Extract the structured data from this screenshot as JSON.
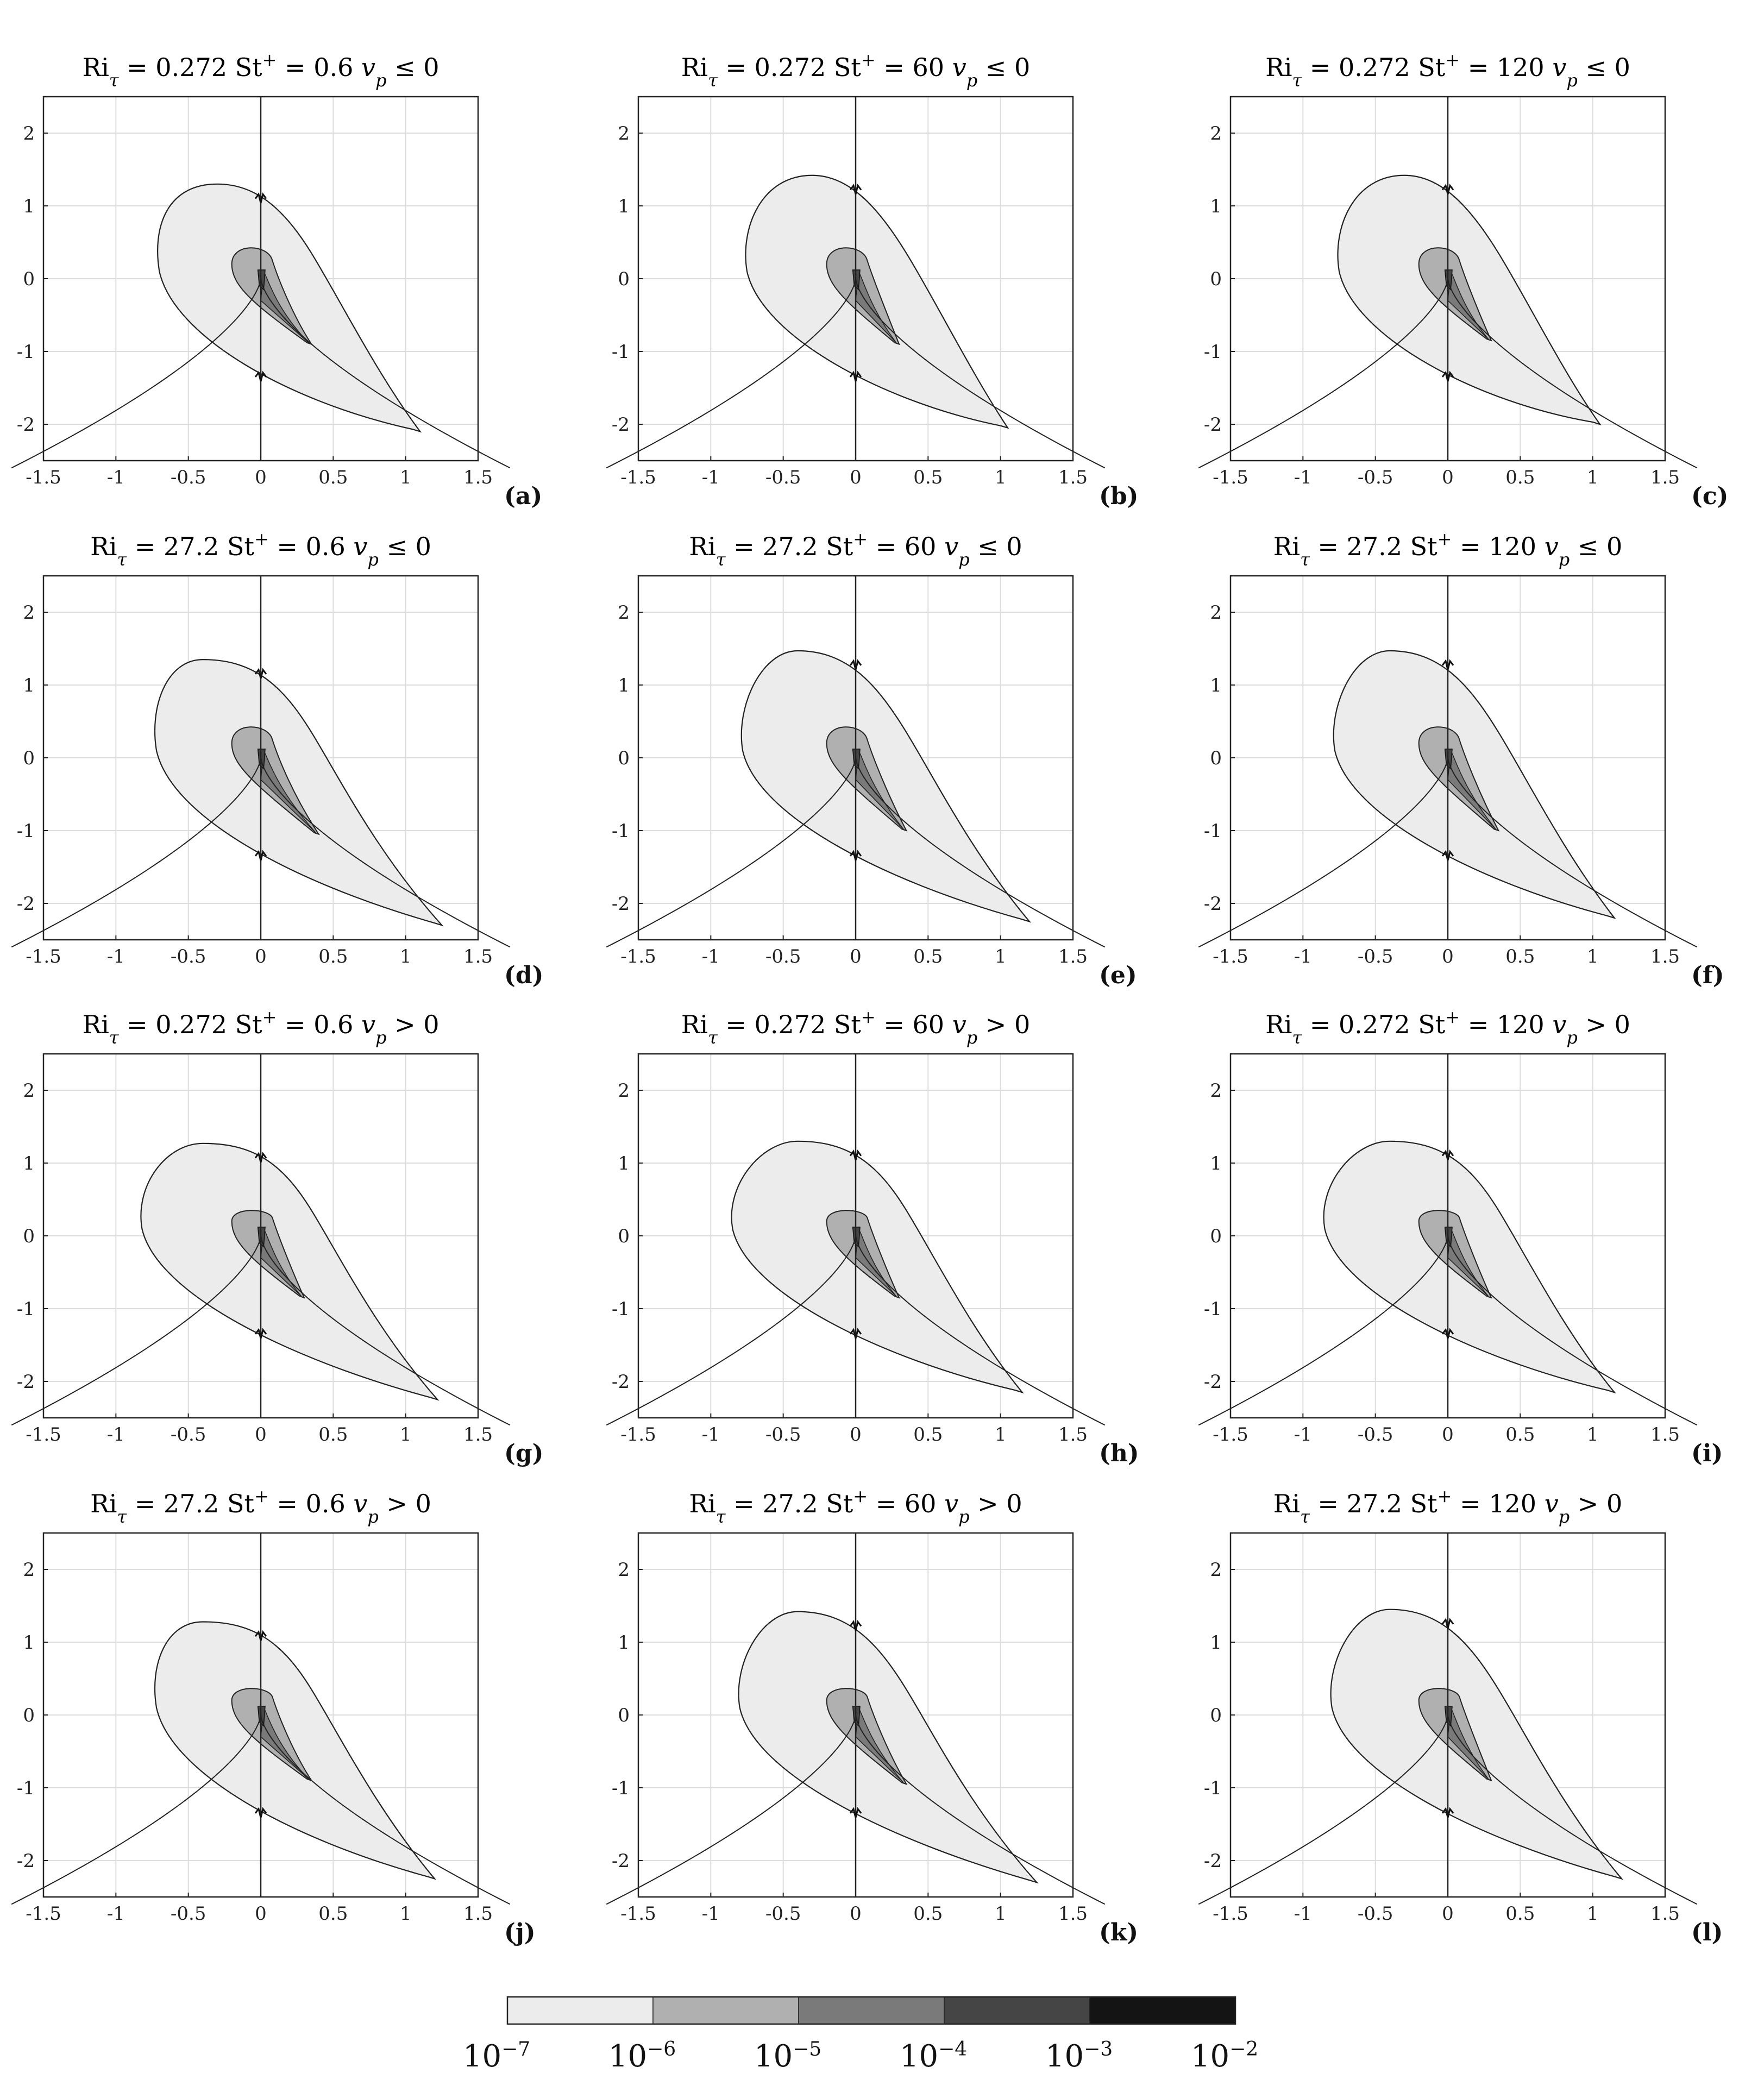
{
  "colorbar": {
    "levels": [
      "10",
      "10",
      "10",
      "10",
      "10",
      "10"
    ],
    "exponents": [
      "−7",
      "−6",
      "−5",
      "−4",
      "−3",
      "−2"
    ],
    "colors": [
      "#ececec",
      "#b0b0b0",
      "#7a7a7a",
      "#454545",
      "#141414"
    ]
  },
  "chart_data": [
    {
      "id": "a",
      "type": "area",
      "ri": "0.272",
      "st": "0.6",
      "vp": "≤ 0",
      "panel_label": "a",
      "xlim": [
        -1.5,
        1.5
      ],
      "ylim": [
        -2.5,
        2.5
      ],
      "xticks": [
        "-1.5",
        "-1",
        "-0.5",
        "0",
        "0.5",
        "1",
        "1.5"
      ],
      "yticks": [
        "2",
        "1",
        "0",
        "-1",
        "-2"
      ],
      "outer": {
        "top": 1.3,
        "left_x": -0.7,
        "tip": [
          1.1,
          -2.1
        ],
        "peak_x": -0.3
      },
      "inner": {
        "top": 0.48,
        "tip": [
          0.35,
          -0.9
        ]
      }
    },
    {
      "id": "b",
      "type": "area",
      "ri": "0.272",
      "st": "60",
      "vp": "≤ 0",
      "panel_label": "b",
      "xlim": [
        -1.5,
        1.5
      ],
      "ylim": [
        -2.5,
        2.5
      ],
      "xticks": [
        "-1.5",
        "-1",
        "-0.5",
        "0",
        "0.5",
        "1",
        "1.5"
      ],
      "yticks": [
        "2",
        "1",
        "0",
        "-1",
        "-2"
      ],
      "outer": {
        "top": 1.42,
        "left_x": -0.75,
        "tip": [
          1.05,
          -2.05
        ],
        "peak_x": -0.3
      },
      "inner": {
        "top": 0.48,
        "tip": [
          0.3,
          -0.9
        ]
      }
    },
    {
      "id": "c",
      "type": "area",
      "ri": "0.272",
      "st": "120",
      "vp": "≤ 0",
      "panel_label": "c",
      "xlim": [
        -1.5,
        1.5
      ],
      "ylim": [
        -2.5,
        2.5
      ],
      "xticks": [
        "-1.5",
        "-1",
        "-0.5",
        "0",
        "0.5",
        "1",
        "1.5"
      ],
      "yticks": [
        "2",
        "1",
        "0",
        "-1",
        "-2"
      ],
      "outer": {
        "top": 1.42,
        "left_x": -0.75,
        "tip": [
          1.05,
          -2.0
        ],
        "peak_x": -0.3
      },
      "inner": {
        "top": 0.48,
        "tip": [
          0.3,
          -0.85
        ]
      }
    },
    {
      "id": "d",
      "type": "area",
      "ri": "27.2",
      "st": "0.6",
      "vp": "≤ 0",
      "panel_label": "d",
      "xlim": [
        -1.5,
        1.5
      ],
      "ylim": [
        -2.5,
        2.5
      ],
      "xticks": [
        "-1.5",
        "-1",
        "-0.5",
        "0",
        "0.5",
        "1",
        "1.5"
      ],
      "yticks": [
        "2",
        "1",
        "0",
        "-1",
        "-2"
      ],
      "outer": {
        "top": 1.35,
        "left_x": -0.72,
        "tip": [
          1.25,
          -2.3
        ],
        "peak_x": -0.4
      },
      "inner": {
        "top": 0.48,
        "tip": [
          0.4,
          -1.05
        ]
      }
    },
    {
      "id": "e",
      "type": "area",
      "ri": "27.2",
      "st": "60",
      "vp": "≤ 0",
      "panel_label": "e",
      "xlim": [
        -1.5,
        1.5
      ],
      "ylim": [
        -2.5,
        2.5
      ],
      "xticks": [
        "-1.5",
        "-1",
        "-0.5",
        "0",
        "0.5",
        "1",
        "1.5"
      ],
      "yticks": [
        "2",
        "1",
        "0",
        "-1",
        "-2"
      ],
      "outer": {
        "top": 1.47,
        "left_x": -0.78,
        "tip": [
          1.2,
          -2.25
        ],
        "peak_x": -0.4
      },
      "inner": {
        "top": 0.48,
        "tip": [
          0.35,
          -1.0
        ]
      }
    },
    {
      "id": "f",
      "type": "area",
      "ri": "27.2",
      "st": "120",
      "vp": "≤ 0",
      "panel_label": "f",
      "xlim": [
        -1.5,
        1.5
      ],
      "ylim": [
        -2.5,
        2.5
      ],
      "xticks": [
        "-1.5",
        "-1",
        "-0.5",
        "0",
        "0.5",
        "1",
        "1.5"
      ],
      "yticks": [
        "2",
        "1",
        "0",
        "-1",
        "-2"
      ],
      "outer": {
        "top": 1.47,
        "left_x": -0.78,
        "tip": [
          1.15,
          -2.2
        ],
        "peak_x": -0.4
      },
      "inner": {
        "top": 0.48,
        "tip": [
          0.35,
          -1.0
        ]
      }
    },
    {
      "id": "g",
      "type": "area",
      "ri": "0.272",
      "st": "0.6",
      "vp": "> 0",
      "panel_label": "g",
      "xlim": [
        -1.5,
        1.5
      ],
      "ylim": [
        -2.5,
        2.5
      ],
      "xticks": [
        "-1.5",
        "-1",
        "-0.5",
        "0",
        "0.5",
        "1",
        "1.5"
      ],
      "yticks": [
        "2",
        "1",
        "0",
        "-1",
        "-2"
      ],
      "outer": {
        "top": 1.27,
        "left_x": -0.82,
        "tip": [
          1.22,
          -2.25
        ],
        "peak_x": -0.4
      },
      "inner": {
        "top": 0.38,
        "tip": [
          0.3,
          -0.85
        ]
      }
    },
    {
      "id": "h",
      "type": "area",
      "ri": "0.272",
      "st": "60",
      "vp": "> 0",
      "panel_label": "h",
      "xlim": [
        -1.5,
        1.5
      ],
      "ylim": [
        -2.5,
        2.5
      ],
      "xticks": [
        "-1.5",
        "-1",
        "-0.5",
        "0",
        "0.5",
        "1",
        "1.5"
      ],
      "yticks": [
        "2",
        "1",
        "0",
        "-1",
        "-2"
      ],
      "outer": {
        "top": 1.3,
        "left_x": -0.85,
        "tip": [
          1.15,
          -2.15
        ],
        "peak_x": -0.4
      },
      "inner": {
        "top": 0.38,
        "tip": [
          0.3,
          -0.85
        ]
      }
    },
    {
      "id": "i",
      "type": "area",
      "ri": "0.272",
      "st": "120",
      "vp": "> 0",
      "panel_label": "i",
      "xlim": [
        -1.5,
        1.5
      ],
      "ylim": [
        -2.5,
        2.5
      ],
      "xticks": [
        "-1.5",
        "-1",
        "-0.5",
        "0",
        "0.5",
        "1",
        "1.5"
      ],
      "yticks": [
        "2",
        "1",
        "0",
        "-1",
        "-2"
      ],
      "outer": {
        "top": 1.3,
        "left_x": -0.85,
        "tip": [
          1.15,
          -2.15
        ],
        "peak_x": -0.4
      },
      "inner": {
        "top": 0.38,
        "tip": [
          0.3,
          -0.85
        ]
      }
    },
    {
      "id": "j",
      "type": "area",
      "ri": "27.2",
      "st": "0.6",
      "vp": "> 0",
      "panel_label": "j",
      "xlim": [
        -1.5,
        1.5
      ],
      "ylim": [
        -2.5,
        2.5
      ],
      "xticks": [
        "-1.5",
        "-1",
        "-0.5",
        "0",
        "0.5",
        "1",
        "1.5"
      ],
      "yticks": [
        "2",
        "1",
        "0",
        "-1",
        "-2"
      ],
      "outer": {
        "top": 1.28,
        "left_x": -0.72,
        "tip": [
          1.2,
          -2.25
        ],
        "peak_x": -0.4
      },
      "inner": {
        "top": 0.4,
        "tip": [
          0.35,
          -0.9
        ]
      }
    },
    {
      "id": "k",
      "type": "area",
      "ri": "27.2",
      "st": "60",
      "vp": "> 0",
      "panel_label": "k",
      "xlim": [
        -1.5,
        1.5
      ],
      "ylim": [
        -2.5,
        2.5
      ],
      "xticks": [
        "-1.5",
        "-1",
        "-0.5",
        "0",
        "0.5",
        "1",
        "1.5"
      ],
      "yticks": [
        "2",
        "1",
        "0",
        "-1",
        "-2"
      ],
      "outer": {
        "top": 1.42,
        "left_x": -0.8,
        "tip": [
          1.25,
          -2.3
        ],
        "peak_x": -0.4
      },
      "inner": {
        "top": 0.4,
        "tip": [
          0.35,
          -0.95
        ]
      }
    },
    {
      "id": "l",
      "type": "area",
      "ri": "27.2",
      "st": "120",
      "vp": "> 0",
      "panel_label": "l",
      "xlim": [
        -1.5,
        1.5
      ],
      "ylim": [
        -2.5,
        2.5
      ],
      "xticks": [
        "-1.5",
        "-1",
        "-0.5",
        "0",
        "0.5",
        "1",
        "1.5"
      ],
      "yticks": [
        "2",
        "1",
        "0",
        "-1",
        "-2"
      ],
      "outer": {
        "top": 1.45,
        "left_x": -0.8,
        "tip": [
          1.2,
          -2.25
        ],
        "peak_x": -0.4
      },
      "inner": {
        "top": 0.4,
        "tip": [
          0.3,
          -0.9
        ]
      }
    }
  ]
}
